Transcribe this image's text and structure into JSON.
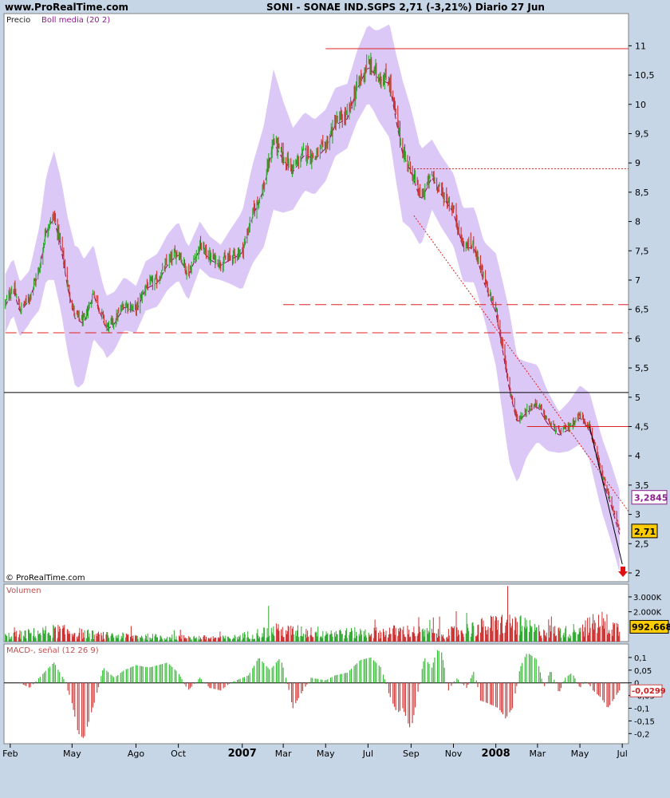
{
  "header": {
    "site": "www.ProRealTime.com",
    "title": "SONI - SONAE IND.SGPS    2,71 (-3,21%)   Diario  27 Jun"
  },
  "colors": {
    "background": "#c6d6e6",
    "panel": "#ffffff",
    "bollinger_band": "#dcc8f6",
    "bollinger_mid": "#8b0a5a",
    "candle_up": "#2ea82e",
    "candle_down": "#cc3030",
    "resistance": "#e02020",
    "macd_pos": "#3cba3c",
    "macd_neg": "#cc4444",
    "price_tag_bg": "#ffcc00",
    "boll_tag_border": "#8e1e8e"
  },
  "chart_data": [
    {
      "type": "candlestick",
      "panel": "price",
      "label": "Precio",
      "indicator_label": "Boll media (20 2)",
      "watermark": "© ProRealTime.com",
      "ylim": [
        1.85,
        11.55
      ],
      "y_ticks": [
        2,
        2.5,
        3,
        3.5,
        4,
        4.5,
        5,
        5.5,
        6,
        6.5,
        7,
        7.5,
        8,
        8.5,
        9,
        9.5,
        10,
        10.5,
        11
      ],
      "y_tick_labels": [
        "2",
        "2,5",
        "3",
        "3,5",
        "4",
        "4,5",
        "5",
        "5,5",
        "6",
        "6,5",
        "7",
        "7,5",
        "8",
        "8,5",
        "9",
        "9,5",
        "10",
        "10,5",
        "11"
      ],
      "x_start": "2006-01-23",
      "x_end": "2008-07-10",
      "x_ticks": [
        {
          "label": "Feb",
          "date": "2006-02-01",
          "bold": false
        },
        {
          "label": "May",
          "date": "2006-05-01",
          "bold": false
        },
        {
          "label": "Ago",
          "date": "2006-08-01",
          "bold": false
        },
        {
          "label": "Oct",
          "date": "2006-10-01",
          "bold": false
        },
        {
          "label": "2007",
          "date": "2007-01-01",
          "bold": true
        },
        {
          "label": "Mar",
          "date": "2007-03-01",
          "bold": false
        },
        {
          "label": "May",
          "date": "2007-05-01",
          "bold": false
        },
        {
          "label": "Jul",
          "date": "2007-07-01",
          "bold": false
        },
        {
          "label": "Sep",
          "date": "2007-09-01",
          "bold": false
        },
        {
          "label": "Nov",
          "date": "2007-11-01",
          "bold": false
        },
        {
          "label": "2008",
          "date": "2008-01-01",
          "bold": true
        },
        {
          "label": "Mar",
          "date": "2008-03-01",
          "bold": false
        },
        {
          "label": "May",
          "date": "2008-05-01",
          "bold": false
        },
        {
          "label": "Jul",
          "date": "2008-07-01",
          "bold": false
        }
      ],
      "close_series": [
        [
          "2006-01-25",
          6.6
        ],
        [
          "2006-02-05",
          6.9
        ],
        [
          "2006-02-15",
          6.5
        ],
        [
          "2006-02-28",
          6.7
        ],
        [
          "2006-03-15",
          7.2
        ],
        [
          "2006-03-25",
          7.9
        ],
        [
          "2006-04-05",
          8.1
        ],
        [
          "2006-04-15",
          7.6
        ],
        [
          "2006-04-25",
          6.9
        ],
        [
          "2006-05-05",
          6.4
        ],
        [
          "2006-05-18",
          6.3
        ],
        [
          "2006-06-01",
          6.8
        ],
        [
          "2006-06-10",
          6.5
        ],
        [
          "2006-06-20",
          6.2
        ],
        [
          "2006-07-01",
          6.3
        ],
        [
          "2006-07-15",
          6.6
        ],
        [
          "2006-08-01",
          6.5
        ],
        [
          "2006-08-15",
          6.9
        ],
        [
          "2006-09-01",
          7.0
        ],
        [
          "2006-09-15",
          7.3
        ],
        [
          "2006-10-01",
          7.5
        ],
        [
          "2006-10-15",
          7.1
        ],
        [
          "2006-11-01",
          7.6
        ],
        [
          "2006-11-15",
          7.4
        ],
        [
          "2006-12-01",
          7.3
        ],
        [
          "2006-12-15",
          7.4
        ],
        [
          "2007-01-01",
          7.5
        ],
        [
          "2007-01-15",
          8.1
        ],
        [
          "2007-02-01",
          8.6
        ],
        [
          "2007-02-15",
          9.4
        ],
        [
          "2007-03-01",
          9.1
        ],
        [
          "2007-03-15",
          8.9
        ],
        [
          "2007-04-01",
          9.2
        ],
        [
          "2007-04-15",
          9.1
        ],
        [
          "2007-05-01",
          9.3
        ],
        [
          "2007-05-15",
          9.7
        ],
        [
          "2007-06-01",
          9.8
        ],
        [
          "2007-06-15",
          10.3
        ],
        [
          "2007-07-01",
          10.7
        ],
        [
          "2007-07-15",
          10.5
        ],
        [
          "2007-08-01",
          10.4
        ],
        [
          "2007-08-10",
          9.8
        ],
        [
          "2007-08-20",
          9.2
        ],
        [
          "2007-09-01",
          8.9
        ],
        [
          "2007-09-15",
          8.4
        ],
        [
          "2007-10-01",
          8.8
        ],
        [
          "2007-10-15",
          8.5
        ],
        [
          "2007-11-01",
          8.2
        ],
        [
          "2007-11-15",
          7.6
        ],
        [
          "2007-12-01",
          7.6
        ],
        [
          "2007-12-15",
          7.0
        ],
        [
          "2008-01-01",
          6.5
        ],
        [
          "2008-01-10",
          5.9
        ],
        [
          "2008-01-20",
          5.2
        ],
        [
          "2008-02-01",
          4.6
        ],
        [
          "2008-02-15",
          4.8
        ],
        [
          "2008-03-01",
          4.9
        ],
        [
          "2008-03-15",
          4.6
        ],
        [
          "2008-04-01",
          4.4
        ],
        [
          "2008-04-15",
          4.5
        ],
        [
          "2008-05-01",
          4.7
        ],
        [
          "2008-05-15",
          4.5
        ],
        [
          "2008-06-01",
          3.7
        ],
        [
          "2008-06-15",
          3.2
        ],
        [
          "2008-06-27",
          2.71
        ]
      ],
      "bollinger_width": [
        [
          "2006-01-25",
          0.5
        ],
        [
          "2006-03-01",
          0.45
        ],
        [
          "2006-04-05",
          1.1
        ],
        [
          "2006-05-10",
          1.2
        ],
        [
          "2006-06-15",
          0.55
        ],
        [
          "2006-08-01",
          0.4
        ],
        [
          "2006-10-01",
          0.5
        ],
        [
          "2006-12-01",
          0.3
        ],
        [
          "2007-02-15",
          1.2
        ],
        [
          "2007-03-15",
          0.7
        ],
        [
          "2007-06-01",
          0.55
        ],
        [
          "2007-07-10",
          0.7
        ],
        [
          "2007-08-20",
          1.2
        ],
        [
          "2007-10-01",
          0.6
        ],
        [
          "2007-12-15",
          0.65
        ],
        [
          "2008-01-20",
          1.3
        ],
        [
          "2008-02-15",
          0.8
        ],
        [
          "2008-04-01",
          0.35
        ],
        [
          "2008-05-20",
          0.6
        ],
        [
          "2008-06-27",
          0.7
        ]
      ],
      "horizontal_lines": [
        {
          "y": 10.95,
          "from": "2007-05-01",
          "style": "solid"
        },
        {
          "y": 8.9,
          "from": "2007-09-05",
          "style": "dotted"
        },
        {
          "y": 6.58,
          "from": "2007-03-01",
          "style": "dashed"
        },
        {
          "y": 6.1,
          "from": "2006-01-25",
          "style": "dashed"
        },
        {
          "y": 4.5,
          "from": "2008-02-15",
          "style": "solid"
        },
        {
          "y": 5.08,
          "from": "2006-01-23",
          "style": "black"
        }
      ],
      "trendlines": [
        {
          "from": [
            "2007-09-05",
            8.1
          ],
          "to": [
            "2008-07-10",
            3.05
          ],
          "style": "dotted"
        },
        {
          "from": [
            "2008-05-15",
            4.5
          ],
          "to": [
            "2008-07-01",
            2.15
          ],
          "style": "black"
        }
      ],
      "down_arrow_at": [
        "2008-07-02",
        2.0
      ],
      "tags": [
        {
          "text": "3,2845",
          "y": 3.2845,
          "kind": "boll"
        },
        {
          "text": "2,71",
          "y": 2.71,
          "kind": "price"
        }
      ]
    },
    {
      "type": "bar",
      "panel": "volume",
      "label": "Volumen",
      "ylim": [
        0,
        3800
      ],
      "y_ticks": [
        {
          "value": 3000,
          "label": "3.000K"
        },
        {
          "value": 2000,
          "label": "2.000K"
        }
      ],
      "last_value_label": "992.668",
      "last_value": 992.668,
      "level_series": [
        [
          "2006-01-25",
          450
        ],
        [
          "2006-04-10",
          900
        ],
        [
          "2006-06-10",
          500
        ],
        [
          "2006-10-01",
          350
        ],
        [
          "2006-12-15",
          300
        ],
        [
          "2007-02-15",
          900
        ],
        [
          "2007-06-01",
          700
        ],
        [
          "2007-07-20",
          750
        ],
        [
          "2007-08-20",
          900
        ],
        [
          "2007-10-15",
          600
        ],
        [
          "2008-01-20",
          1600
        ],
        [
          "2008-03-01",
          900
        ],
        [
          "2008-04-15",
          800
        ],
        [
          "2008-06-01",
          1600
        ],
        [
          "2008-06-27",
          1000
        ]
      ]
    },
    {
      "type": "bar",
      "panel": "macd",
      "label": "MACD-, señal (12 26 9)",
      "ylim": [
        -0.24,
        0.15
      ],
      "y_ticks": [
        0.1,
        0.05,
        0,
        -0.05,
        -0.1,
        -0.15,
        -0.2
      ],
      "y_tick_labels": [
        "0,1",
        "0,05",
        "0",
        "-0,05",
        "-0,1",
        "-0,15",
        "-0,2"
      ],
      "last_value_label": "-0,0299",
      "last_value": -0.0299,
      "series": [
        [
          "2006-01-25",
          0.0
        ],
        [
          "2006-02-15",
          0.0
        ],
        [
          "2006-03-01",
          -0.02
        ],
        [
          "2006-03-25",
          0.05
        ],
        [
          "2006-04-05",
          0.08
        ],
        [
          "2006-04-20",
          0.01
        ],
        [
          "2006-05-01",
          -0.08
        ],
        [
          "2006-05-10",
          -0.2
        ],
        [
          "2006-05-18",
          -0.22
        ],
        [
          "2006-06-05",
          -0.05
        ],
        [
          "2006-06-15",
          0.06
        ],
        [
          "2006-07-01",
          0.02
        ],
        [
          "2006-07-15",
          0.05
        ],
        [
          "2006-08-01",
          0.07
        ],
        [
          "2006-08-20",
          0.06
        ],
        [
          "2006-09-15",
          0.08
        ],
        [
          "2006-10-01",
          0.04
        ],
        [
          "2006-10-15",
          -0.03
        ],
        [
          "2006-11-01",
          0.02
        ],
        [
          "2006-11-15",
          -0.02
        ],
        [
          "2006-12-01",
          -0.03
        ],
        [
          "2006-12-15",
          0.0
        ],
        [
          "2007-01-10",
          0.03
        ],
        [
          "2007-01-25",
          0.1
        ],
        [
          "2007-02-10",
          0.05
        ],
        [
          "2007-02-25",
          0.1
        ],
        [
          "2007-03-05",
          0.02
        ],
        [
          "2007-03-15",
          -0.1
        ],
        [
          "2007-03-25",
          -0.05
        ],
        [
          "2007-04-10",
          0.02
        ],
        [
          "2007-05-01",
          0.01
        ],
        [
          "2007-05-15",
          0.03
        ],
        [
          "2007-06-01",
          0.04
        ],
        [
          "2007-06-20",
          0.09
        ],
        [
          "2007-07-05",
          0.1
        ],
        [
          "2007-07-20",
          0.06
        ],
        [
          "2007-08-01",
          -0.05
        ],
        [
          "2007-08-12",
          -0.12
        ],
        [
          "2007-08-20",
          -0.1
        ],
        [
          "2007-09-01",
          -0.19
        ],
        [
          "2007-09-10",
          -0.05
        ],
        [
          "2007-09-20",
          0.1
        ],
        [
          "2007-10-01",
          0.06
        ],
        [
          "2007-10-08",
          0.13
        ],
        [
          "2007-10-15",
          0.12
        ],
        [
          "2007-10-25",
          -0.03
        ],
        [
          "2007-11-05",
          0.02
        ],
        [
          "2007-11-20",
          -0.02
        ],
        [
          "2007-12-01",
          0.05
        ],
        [
          "2007-12-10",
          -0.07
        ],
        [
          "2007-12-20",
          -0.08
        ],
        [
          "2008-01-05",
          -0.1
        ],
        [
          "2008-01-15",
          -0.14
        ],
        [
          "2008-01-25",
          -0.1
        ],
        [
          "2008-02-05",
          0.06
        ],
        [
          "2008-02-15",
          0.12
        ],
        [
          "2008-03-01",
          0.09
        ],
        [
          "2008-03-10",
          -0.02
        ],
        [
          "2008-03-20",
          0.05
        ],
        [
          "2008-04-01",
          -0.04
        ],
        [
          "2008-04-10",
          0.02
        ],
        [
          "2008-04-20",
          0.04
        ],
        [
          "2008-05-01",
          -0.02
        ],
        [
          "2008-05-10",
          0.01
        ],
        [
          "2008-05-20",
          -0.03
        ],
        [
          "2008-06-01",
          -0.06
        ],
        [
          "2008-06-10",
          -0.1
        ],
        [
          "2008-06-20",
          -0.06
        ],
        [
          "2008-06-27",
          -0.03
        ]
      ]
    }
  ]
}
